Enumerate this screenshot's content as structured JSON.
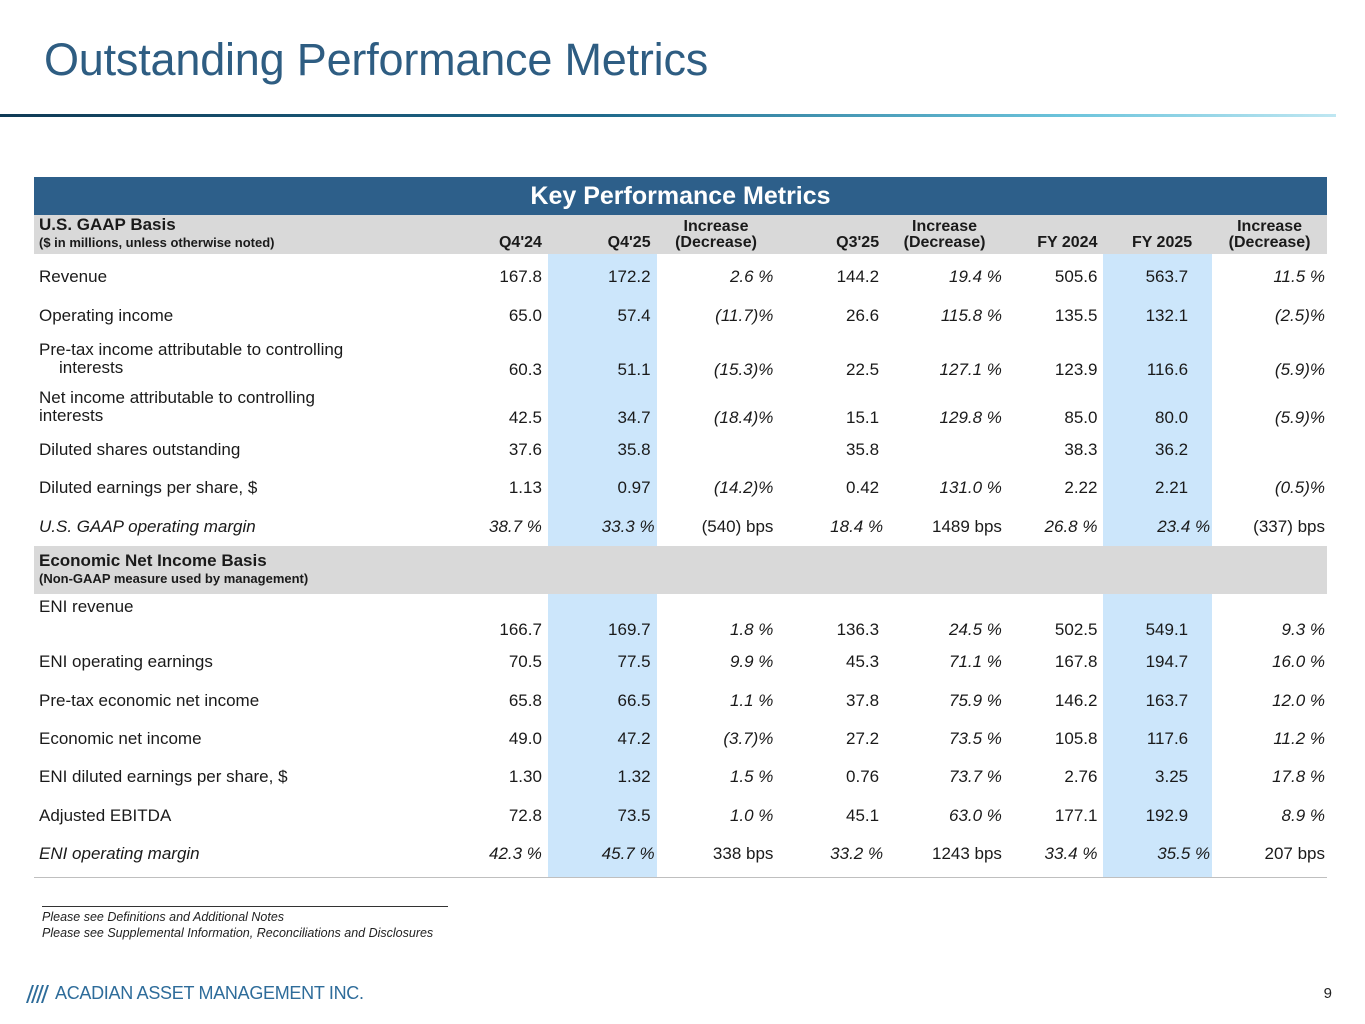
{
  "page": {
    "title": "Outstanding Performance Metrics",
    "page_number": "9"
  },
  "table": {
    "banner": "Key Performance Metrics",
    "gaap_section": {
      "title": "U.S. GAAP Basis",
      "subtitle": "($ in millions, unless otherwise noted)"
    },
    "columns": {
      "q4_24": "Q4'24",
      "q4_25": "Q4'25",
      "inc1_a": "Increase",
      "inc1_b": "(Decrease)",
      "q3_25": "Q3'25",
      "inc2_a": "Increase",
      "inc2_b": "(Decrease)",
      "fy24": "FY 2024",
      "fy25": "FY 2025",
      "inc3_a": "Increase",
      "inc3_b": "(Decrease)"
    },
    "currency_symbol": "$",
    "gaap_rows": [
      {
        "label": "Revenue",
        "q4_24": "167.8",
        "q4_25": "172.2",
        "chg1": "2.6 %",
        "q3_25": "144.2",
        "chg2": "19.4 %",
        "fy24": "505.6",
        "fy25": "563.7",
        "chg3": "11.5 %"
      },
      {
        "label": "Operating income",
        "q4_24": "65.0",
        "q4_25": "57.4",
        "chg1": "(11.7)%",
        "q3_25": "26.6",
        "chg2": "115.8 %",
        "fy24": "135.5",
        "fy25": "132.1",
        "chg3": "(2.5)%"
      },
      {
        "label_line1": "Pre-tax income attributable to controlling",
        "label_line2": "interests",
        "q4_24": "60.3",
        "q4_25": "51.1",
        "chg1": "(15.3)%",
        "q3_25": "22.5",
        "chg2": "127.1 %",
        "fy24": "123.9",
        "fy25": "116.6",
        "chg3": "(5.9)%"
      },
      {
        "label_line1": "Net income attributable to controlling",
        "label_line2": "interests",
        "q4_24": "42.5",
        "q4_25": "34.7",
        "chg1": "(18.4)%",
        "q3_25": "15.1",
        "chg2": "129.8 %",
        "fy24": "85.0",
        "fy25": "80.0",
        "chg3": "(5.9)%"
      },
      {
        "label": "Diluted shares outstanding",
        "q4_24": "37.6",
        "q4_25": "35.8",
        "chg1": "",
        "q3_25": "35.8",
        "chg2": "",
        "fy24": "38.3",
        "fy25": "36.2",
        "chg3": ""
      },
      {
        "label": "Diluted earnings per share, $",
        "q4_24": "1.13",
        "q4_25": "0.97",
        "chg1": "(14.2)%",
        "q3_25": "0.42",
        "chg2": "131.0 %",
        "fy24": "2.22",
        "fy25": "2.21",
        "chg3": "(0.5)%"
      },
      {
        "label": "U.S. GAAP operating margin",
        "q4_24": "38.7 %",
        "q4_25": "33.3 %",
        "chg1": "(540) bps",
        "q3_25": "18.4 %",
        "chg2": "1489 bps",
        "fy24": "26.8 %",
        "fy25": "23.4 %",
        "chg3": "(337) bps"
      }
    ],
    "eni_section": {
      "title": "Economic Net Income Basis",
      "subtitle": "(Non-GAAP measure used by management)"
    },
    "eni_rows": [
      {
        "label": "ENI revenue",
        "q4_24": "166.7",
        "q4_25": "169.7",
        "chg1": "1.8 %",
        "q3_25": "136.3",
        "chg2": "24.5 %",
        "fy24": "502.5",
        "fy25": "549.1",
        "chg3": "9.3 %"
      },
      {
        "label": "ENI operating earnings",
        "q4_24": "70.5",
        "q4_25": "77.5",
        "chg1": "9.9 %",
        "q3_25": "45.3",
        "chg2": "71.1 %",
        "fy24": "167.8",
        "fy25": "194.7",
        "chg3": "16.0 %"
      },
      {
        "label": "Pre-tax economic net income",
        "q4_24": "65.8",
        "q4_25": "66.5",
        "chg1": "1.1 %",
        "q3_25": "37.8",
        "chg2": "75.9 %",
        "fy24": "146.2",
        "fy25": "163.7",
        "chg3": "12.0 %"
      },
      {
        "label": "Economic net income",
        "q4_24": "49.0",
        "q4_25": "47.2",
        "chg1": "(3.7)%",
        "q3_25": "27.2",
        "chg2": "73.5 %",
        "fy24": "105.8",
        "fy25": "117.6",
        "chg3": "11.2 %"
      },
      {
        "label": "ENI diluted earnings per share, $",
        "q4_24": "1.30",
        "q4_25": "1.32",
        "chg1": "1.5 %",
        "q3_25": "0.76",
        "chg2": "73.7 %",
        "fy24": "2.76",
        "fy25": "3.25",
        "chg3": "17.8 %"
      },
      {
        "label": "Adjusted EBITDA",
        "q4_24": "72.8",
        "q4_25": "73.5",
        "chg1": "1.0 %",
        "q3_25": "45.1",
        "chg2": "63.0 %",
        "fy24": "177.1",
        "fy25": "192.9",
        "chg3": "8.9 %"
      },
      {
        "label": "ENI operating margin",
        "q4_24": "42.3 %",
        "q4_25": "45.7 %",
        "chg1": "338 bps",
        "q3_25": "33.2 %",
        "chg2": "1243 bps",
        "fy24": "33.4 %",
        "fy25": "35.5 %",
        "chg3": "207 bps"
      }
    ]
  },
  "footnotes": [
    "Please see Definitions and Additional Notes",
    "Please see Supplemental Information, Reconciliations and Disclosures"
  ],
  "footer": {
    "company": "ACADIAN ASSET MANAGEMENT INC.",
    "logo_icon": "acadian-stripes-icon"
  },
  "colors": {
    "title": "#2e5d82",
    "banner": "#2d5f8a",
    "highlight": "#cce6fb",
    "section_bg": "#d9d9d9"
  }
}
